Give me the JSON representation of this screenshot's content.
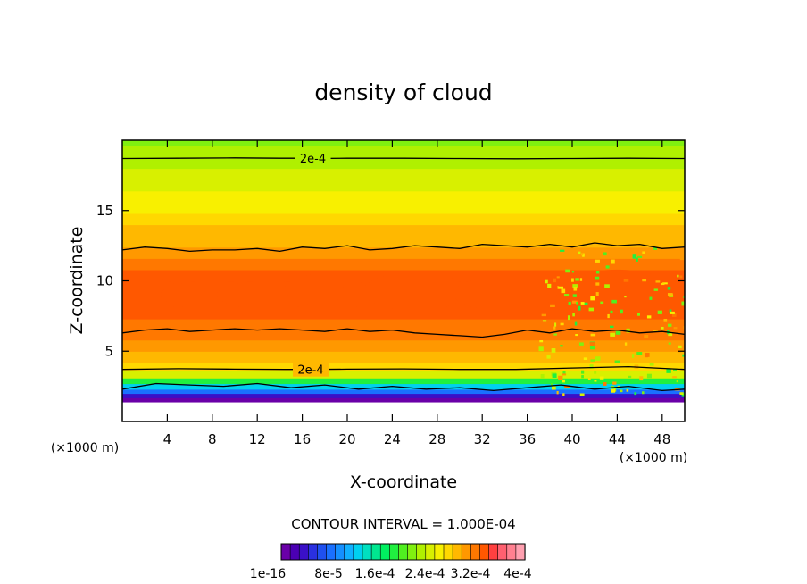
{
  "chart_data": {
    "type": "heatmap",
    "title": "density of cloud",
    "xlabel": "X-coordinate",
    "ylabel": "Z-coordinate",
    "x_unit": "(×1000 m)",
    "y_unit": "(×1000 m)",
    "xlim": [
      0,
      50
    ],
    "ylim": [
      0,
      20
    ],
    "x_ticks": [
      4,
      8,
      12,
      16,
      20,
      24,
      28,
      32,
      36,
      40,
      44,
      48
    ],
    "y_ticks": [
      5,
      10,
      15
    ],
    "contour_interval_text": "CONTOUR INTERVAL = 1.000E-04",
    "contour_label": "2e-4",
    "colorbar": {
      "colors": [
        "#6a00a8",
        "#4b00b4",
        "#3a10c8",
        "#2a30e0",
        "#1f50f0",
        "#1a70ff",
        "#1590ff",
        "#10b0ff",
        "#00d0f0",
        "#00e0c0",
        "#00e890",
        "#00f060",
        "#20f040",
        "#50f020",
        "#80f010",
        "#b0f000",
        "#d8f000",
        "#f8f000",
        "#ffd800",
        "#ffb800",
        "#ff9800",
        "#ff7800",
        "#ff5800",
        "#ff4040",
        "#ff6070",
        "#ff8090",
        "#ffa0b0"
      ],
      "tick_labels": [
        "1e-16",
        "8e-5",
        "1.6e-4",
        "2.4e-4",
        "3.2e-4",
        "4e-4"
      ]
    },
    "profile": {
      "z": [
        1.4,
        1.7,
        2.0,
        2.3,
        2.7,
        3.1,
        3.6,
        4.2,
        5.0,
        5.8,
        6.5,
        7.3,
        8.2,
        9.0,
        10.0,
        10.8,
        11.6,
        12.4,
        13.2,
        14.0,
        14.8,
        15.6,
        16.4,
        17.2,
        18.0,
        18.8,
        19.6
      ],
      "level_index": [
        0,
        2,
        5,
        8,
        12,
        16,
        18,
        19,
        20,
        21,
        21,
        22,
        22,
        22,
        22,
        21,
        20,
        19,
        19,
        18,
        17,
        17,
        16,
        16,
        15,
        15,
        14
      ]
    },
    "core_level_index": 22,
    "core_regions": [
      [
        1,
        10.3,
        7.7
      ],
      [
        8,
        10.0,
        8.0
      ],
      [
        13,
        10.0,
        8.0
      ],
      [
        19,
        10.6,
        8.2
      ],
      [
        23.5,
        10.0,
        8.0
      ],
      [
        26,
        10.6,
        7.9
      ],
      [
        34,
        10.3,
        7.9
      ],
      [
        44,
        10.8,
        8.3
      ],
      [
        49,
        10.4,
        7.8
      ]
    ],
    "contours": [
      {
        "label": "2e-4",
        "x": [
          0,
          5,
          10,
          14,
          15.2,
          17,
          20,
          25,
          30,
          35,
          40,
          45,
          50
        ],
        "y": [
          18.7,
          18.72,
          18.74,
          18.72,
          18.72,
          18.7,
          18.72,
          18.72,
          18.7,
          18.68,
          18.7,
          18.72,
          18.7
        ]
      },
      {
        "label": "",
        "x": [
          0,
          2,
          4,
          6,
          8,
          10,
          12,
          14,
          16,
          18,
          20,
          22,
          24,
          26,
          28,
          30,
          32,
          34,
          36,
          38,
          40,
          42,
          44,
          46,
          48,
          50
        ],
        "y": [
          12.2,
          12.4,
          12.3,
          12.1,
          12.2,
          12.2,
          12.3,
          12.1,
          12.4,
          12.3,
          12.5,
          12.2,
          12.3,
          12.5,
          12.4,
          12.3,
          12.6,
          12.5,
          12.4,
          12.6,
          12.4,
          12.7,
          12.5,
          12.6,
          12.3,
          12.4
        ]
      },
      {
        "label": "",
        "x": [
          0,
          2,
          4,
          6,
          8,
          10,
          12,
          14,
          16,
          18,
          20,
          22,
          24,
          26,
          28,
          30,
          32,
          34,
          36,
          38,
          40,
          42,
          44,
          46,
          48,
          50
        ],
        "y": [
          6.3,
          6.5,
          6.6,
          6.4,
          6.5,
          6.6,
          6.5,
          6.6,
          6.5,
          6.4,
          6.6,
          6.4,
          6.5,
          6.3,
          6.2,
          6.1,
          6.0,
          6.2,
          6.5,
          6.3,
          6.6,
          6.4,
          6.5,
          6.3,
          6.4,
          6.2
        ]
      },
      {
        "label": "2e-4",
        "x": [
          0,
          5,
          10,
          14.5,
          15,
          17,
          20,
          25,
          30,
          35,
          40,
          45,
          50
        ],
        "y": [
          3.7,
          3.75,
          3.72,
          3.7,
          3.7,
          3.7,
          3.72,
          3.74,
          3.7,
          3.7,
          3.8,
          3.9,
          3.7
        ]
      },
      {
        "label": "",
        "x": [
          0,
          3,
          6,
          9,
          12,
          15,
          18,
          21,
          24,
          27,
          30,
          33,
          36,
          39,
          42,
          45,
          48,
          50
        ],
        "y": [
          2.3,
          2.7,
          2.6,
          2.5,
          2.7,
          2.4,
          2.6,
          2.3,
          2.5,
          2.3,
          2.4,
          2.2,
          2.4,
          2.6,
          2.3,
          2.5,
          2.2,
          2.3
        ]
      }
    ],
    "noise_region": {
      "x": [
        37,
        50
      ],
      "y": [
        2.0,
        12.5
      ]
    }
  }
}
